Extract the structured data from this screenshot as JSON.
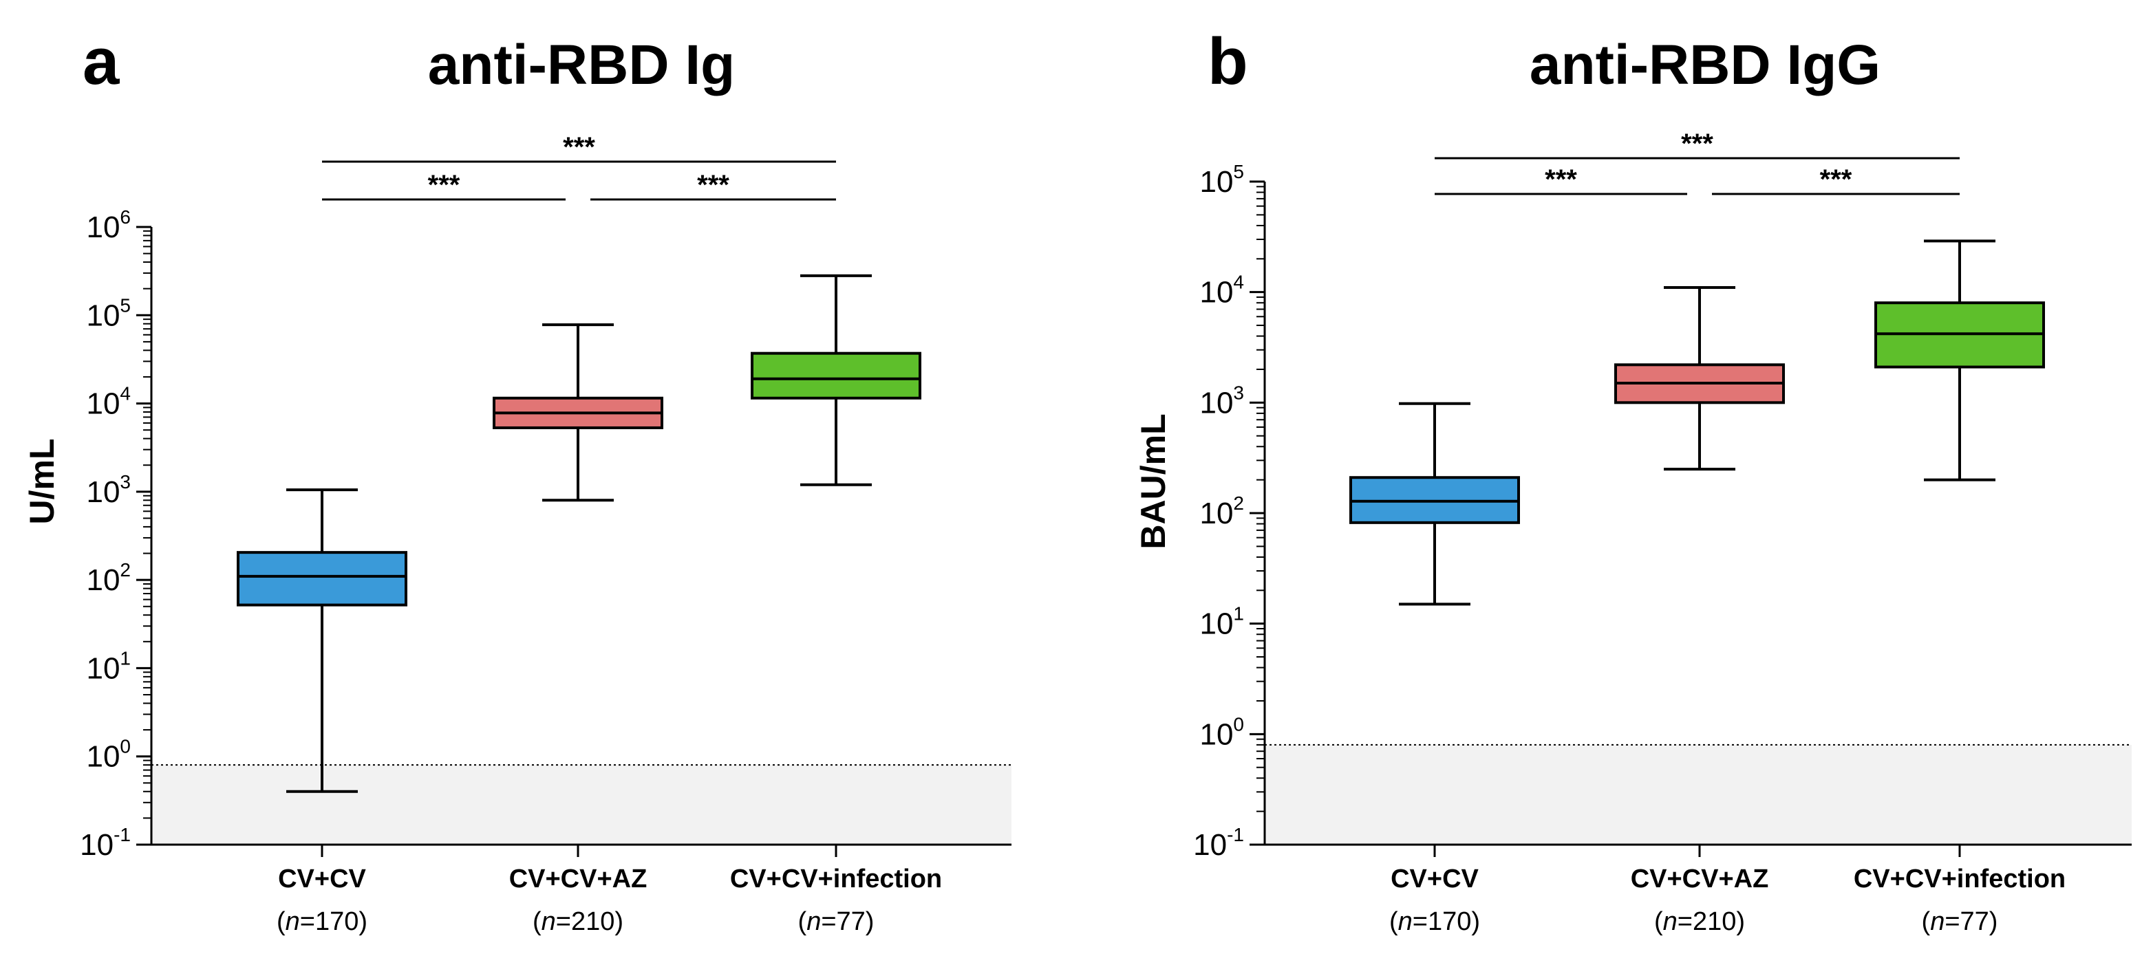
{
  "chart_data": [
    {
      "type": "box",
      "panel_letter": "a",
      "title": "anti-RBD Ig",
      "ylabel": "U/mL",
      "yscale": "log",
      "ylim": [
        0.1,
        1000000
      ],
      "ytick_labels": [
        {
          "base": "10",
          "exp": "-1",
          "value": 0.1
        },
        {
          "base": "10",
          "exp": "0",
          "value": 1
        },
        {
          "base": "10",
          "exp": "1",
          "value": 10
        },
        {
          "base": "10",
          "exp": "2",
          "value": 100
        },
        {
          "base": "10",
          "exp": "3",
          "value": 1000
        },
        {
          "base": "10",
          "exp": "4",
          "value": 10000
        },
        {
          "base": "10",
          "exp": "5",
          "value": 100000
        },
        {
          "base": "10",
          "exp": "6",
          "value": 1000000
        }
      ],
      "threshold": 0.8,
      "groups": [
        {
          "name": "CV+CV",
          "n_prefix": "n",
          "n_value": "=170",
          "color": "#3a9ad9",
          "min": 0.4,
          "q1": 52,
          "median": 110,
          "q3": 205,
          "max": 1050
        },
        {
          "name": "CV+CV+AZ",
          "n_prefix": "n",
          "n_value": "=210",
          "color": "#e17575",
          "min": 800,
          "q1": 5300,
          "median": 7800,
          "q3": 11500,
          "max": 78000
        },
        {
          "name": "CV+CV+infection",
          "n_prefix": "n",
          "n_value": "=77",
          "color": "#5ebf2b",
          "min": 1200,
          "q1": 11500,
          "median": 19000,
          "q3": 37000,
          "max": 280000
        }
      ],
      "significance": [
        {
          "from": 0,
          "to": 1,
          "label": "***",
          "level": 1
        },
        {
          "from": 1,
          "to": 2,
          "label": "***",
          "level": 1
        },
        {
          "from": 0,
          "to": 2,
          "label": "***",
          "level": 2
        }
      ]
    },
    {
      "type": "box",
      "panel_letter": "b",
      "title": "anti-RBD IgG",
      "ylabel": "BAU/mL",
      "yscale": "log",
      "ylim": [
        0.1,
        100000
      ],
      "ytick_labels": [
        {
          "base": "10",
          "exp": "-1",
          "value": 0.1
        },
        {
          "base": "10",
          "exp": "0",
          "value": 1
        },
        {
          "base": "10",
          "exp": "1",
          "value": 10
        },
        {
          "base": "10",
          "exp": "2",
          "value": 100
        },
        {
          "base": "10",
          "exp": "3",
          "value": 1000
        },
        {
          "base": "10",
          "exp": "4",
          "value": 10000
        },
        {
          "base": "10",
          "exp": "5",
          "value": 100000
        }
      ],
      "threshold": 0.8,
      "groups": [
        {
          "name": "CV+CV",
          "n_prefix": "n",
          "n_value": "=170",
          "color": "#3a9ad9",
          "min": 15,
          "q1": 82,
          "median": 128,
          "q3": 210,
          "max": 980
        },
        {
          "name": "CV+CV+AZ",
          "n_prefix": "n",
          "n_value": "=210",
          "color": "#e17575",
          "min": 250,
          "q1": 1000,
          "median": 1500,
          "q3": 2200,
          "max": 11000
        },
        {
          "name": "CV+CV+infection",
          "n_prefix": "n",
          "n_value": "=77",
          "color": "#5ebf2b",
          "min": 200,
          "q1": 2100,
          "median": 4200,
          "q3": 8000,
          "max": 29000
        }
      ],
      "significance": [
        {
          "from": 0,
          "to": 1,
          "label": "***",
          "level": 1
        },
        {
          "from": 1,
          "to": 2,
          "label": "***",
          "level": 1
        },
        {
          "from": 0,
          "to": 2,
          "label": "***",
          "level": 2
        }
      ]
    }
  ]
}
